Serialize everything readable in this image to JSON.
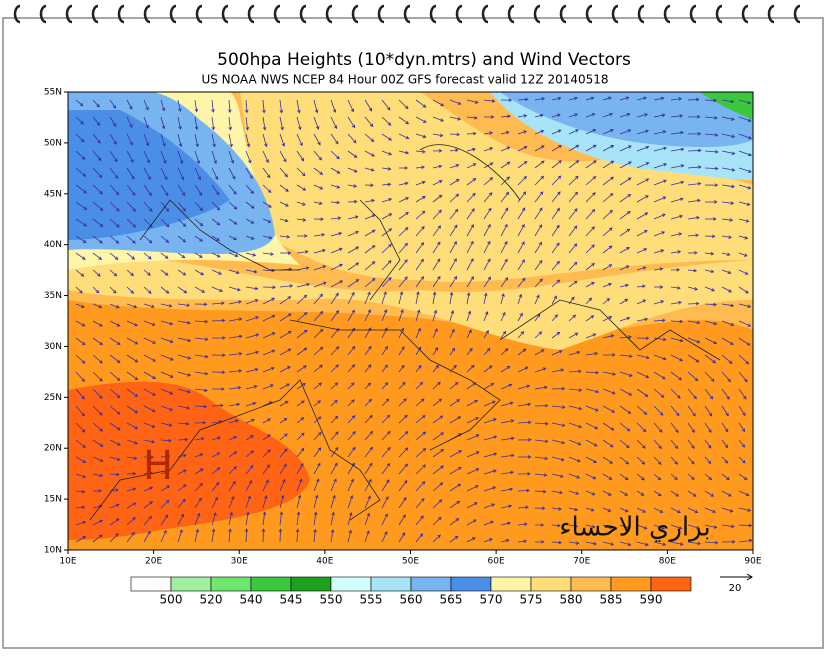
{
  "header": {
    "title": "500hpa Heights (10*dyn.mtrs) and Wind Vectors",
    "subtitle": "US NOAA NWS NCEP 84 Hour 00Z GFS forecast valid 12Z 20140518"
  },
  "map": {
    "lat_labels": [
      "55N",
      "50N",
      "45N",
      "40N",
      "35N",
      "30N",
      "25N",
      "20N",
      "15N",
      "10N"
    ],
    "lon_labels": [
      "10E",
      "20E",
      "30E",
      "40E",
      "50E",
      "60E",
      "70E",
      "80E",
      "90E"
    ],
    "high_label": "H",
    "watermark": "براري الاحساء"
  },
  "legend": {
    "colors": [
      "#ffffff",
      "#a0f0a0",
      "#6ee66e",
      "#3cc83c",
      "#1ea01e",
      "#d2ffff",
      "#a8e4f8",
      "#78b4f0",
      "#4a8ee6",
      "#fff5a8",
      "#ffdd78",
      "#ffbb50",
      "#ff9a1e",
      "#ff6414"
    ],
    "labels": [
      500,
      520,
      540,
      545,
      550,
      555,
      560,
      565,
      570,
      575,
      580,
      585,
      590
    ],
    "vector_scale": 20
  }
}
